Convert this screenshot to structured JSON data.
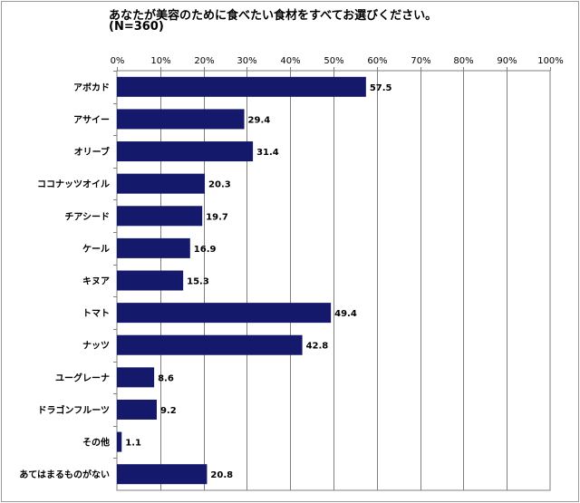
{
  "chart_data": {
    "type": "bar",
    "orientation": "horizontal",
    "title": "あなたが美容のために食べたい食材をすべてお選びください。",
    "subtitle": "(N=360)",
    "categories": [
      "アボカド",
      "アサイー",
      "オリーブ",
      "ココナッツオイル",
      "チアシード",
      "ケール",
      "キヌア",
      "トマト",
      "ナッツ",
      "ユーグレーナ",
      "ドラゴンフルーツ",
      "その他",
      "あてはまるものがない"
    ],
    "values": [
      57.5,
      29.4,
      31.4,
      20.3,
      19.7,
      16.9,
      15.3,
      49.4,
      42.8,
      8.6,
      9.2,
      1.1,
      20.8
    ],
    "value_labels": [
      "57.5",
      "29.4",
      "31.4",
      "20.3",
      "19.7",
      "16.9",
      "15.3",
      "49.4",
      "42.8",
      "8.6",
      "9.2",
      "1.1",
      "20.8"
    ],
    "x_ticks": [
      "0%",
      "10%",
      "20%",
      "30%",
      "40%",
      "50%",
      "60%",
      "70%",
      "80%",
      "90%",
      "100%"
    ],
    "xlim": [
      0,
      100
    ],
    "xlabel": "",
    "ylabel": "",
    "grid": true,
    "legend": false,
    "bar_color": "#14196b"
  }
}
